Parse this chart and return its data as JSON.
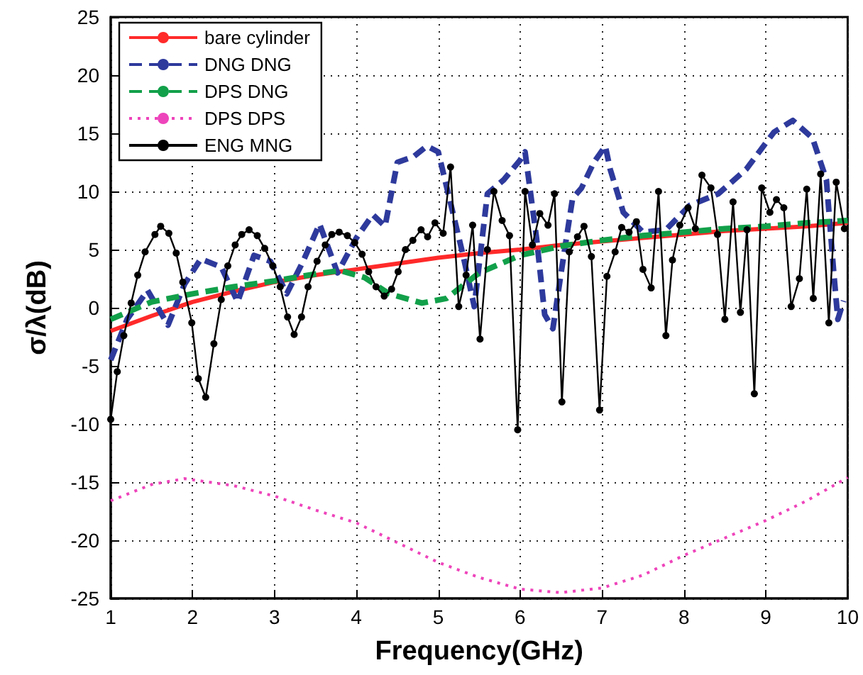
{
  "chart_data": {
    "type": "line",
    "xlabel": "Frequency(GHz)",
    "ylabel": "σ/λ(dB)",
    "xlim": [
      1,
      10
    ],
    "xticks": [
      1,
      2,
      3,
      4,
      5,
      6,
      7,
      8,
      9,
      10
    ],
    "ylim": [
      -25,
      25
    ],
    "yticks": [
      -25,
      -20,
      -15,
      -10,
      -5,
      0,
      5,
      10,
      15,
      20,
      25
    ],
    "grid": true,
    "legend": "top left",
    "series": [
      {
        "name": "bare cylinder",
        "color": "#ff2a2a",
        "line_style": "solid",
        "marker": "none",
        "x": [
          1,
          1.5,
          2,
          2.5,
          3,
          3.5,
          4,
          4.5,
          5,
          5.5,
          6,
          6.5,
          7,
          7.5,
          8,
          8.5,
          9,
          9.5,
          10
        ],
        "values": [
          -2,
          -0.7,
          0.5,
          1.4,
          2.2,
          2.8,
          3.3,
          3.8,
          4.3,
          4.7,
          5.0,
          5.4,
          5.7,
          6.0,
          6.3,
          6.6,
          6.8,
          7.0,
          7.3
        ]
      },
      {
        "name": "DNG DNG",
        "color": "#2e3a9c",
        "line_style": "dashed",
        "marker": "none",
        "x": [
          1,
          1.2,
          1.45,
          1.7,
          1.9,
          2.1,
          2.35,
          2.55,
          2.75,
          2.95,
          3.15,
          3.35,
          3.55,
          3.77,
          4.0,
          4.2,
          4.35,
          4.5,
          4.7,
          4.86,
          5.0,
          5.15,
          5.3,
          5.44,
          5.6,
          5.8,
          6.0,
          6.06,
          6.2,
          6.3,
          6.4,
          6.5,
          6.64,
          6.75,
          6.9,
          7.04,
          7.1,
          7.26,
          7.5,
          7.78,
          8.07,
          8.42,
          8.76,
          9.1,
          9.33,
          9.57,
          9.74,
          9.83,
          9.88,
          9.95
        ],
        "values": [
          -4.5,
          -1,
          1.5,
          -1.5,
          2,
          4.2,
          3.5,
          0.5,
          4.5,
          4,
          1.2,
          4,
          7.2,
          3,
          6,
          8,
          7,
          12.5,
          13,
          13.9,
          13.4,
          9,
          4.6,
          0.1,
          9.8,
          11,
          12.7,
          13.4,
          6,
          -0.6,
          -1.8,
          3,
          9.4,
          10.3,
          12.5,
          13.9,
          11.9,
          8.2,
          6.5,
          6.7,
          8.8,
          9.8,
          11.9,
          15.1,
          16.1,
          14.6,
          11,
          3,
          -1,
          0.6
        ]
      },
      {
        "name": "DPS DNG",
        "color": "#12a04a",
        "line_style": "dashed",
        "marker": "none",
        "x": [
          1,
          1.5,
          2,
          2.5,
          3,
          3.5,
          3.8,
          4.1,
          4.4,
          4.8,
          5.1,
          5.5,
          6,
          6.5,
          7,
          7.5,
          8,
          8.5,
          9,
          9.5,
          10
        ],
        "values": [
          -1,
          0.5,
          1.2,
          1.8,
          2.3,
          2.9,
          3.2,
          2.6,
          1.2,
          0.4,
          0.8,
          3,
          4.5,
          5.3,
          5.8,
          6.2,
          6.5,
          6.8,
          7,
          7.3,
          7.5
        ]
      },
      {
        "name": "DPS DPS",
        "color": "#ee44bb",
        "line_style": "dotted",
        "marker": "none",
        "x": [
          1,
          1.5,
          1.9,
          2.5,
          3,
          3.5,
          4,
          4.5,
          5,
          5.5,
          6,
          6.5,
          7,
          7.5,
          8,
          8.5,
          9,
          9.5,
          10
        ],
        "values": [
          -16.6,
          -15.2,
          -14.7,
          -15.3,
          -16.2,
          -17.4,
          -18.5,
          -20.2,
          -21.9,
          -23.2,
          -24.2,
          -24.5,
          -24.1,
          -23,
          -21.3,
          -19.8,
          -18.3,
          -16.6,
          -14.6
        ]
      },
      {
        "name": "ENG MNG",
        "color": "#000000",
        "line_style": "solid",
        "marker": "circle",
        "x": [
          1,
          1.08,
          1.16,
          1.25,
          1.33,
          1.42,
          1.54,
          1.61,
          1.71,
          1.8,
          1.88,
          1.99,
          2.07,
          2.16,
          2.26,
          2.35,
          2.43,
          2.52,
          2.6,
          2.69,
          2.79,
          2.88,
          2.98,
          3.07,
          3.16,
          3.24,
          3.33,
          3.41,
          3.52,
          3.62,
          3.7,
          3.79,
          3.89,
          3.98,
          4.07,
          4.15,
          4.24,
          4.34,
          4.43,
          4.51,
          4.6,
          4.69,
          4.79,
          4.87,
          4.96,
          5.06,
          5.15,
          5.25,
          5.34,
          5.42,
          5.51,
          5.6,
          5.68,
          5.78,
          5.87,
          5.97,
          6.06,
          6.15,
          6.24,
          6.34,
          6.42,
          6.51,
          6.6,
          6.7,
          6.78,
          6.87,
          6.97,
          7.06,
          7.16,
          7.24,
          7.33,
          7.42,
          7.5,
          7.6,
          7.69,
          7.78,
          7.86,
          7.95,
          8.05,
          8.14,
          8.22,
          8.33,
          8.41,
          8.5,
          8.6,
          8.69,
          8.77,
          8.86,
          8.95,
          9.05,
          9.13,
          9.22,
          9.31,
          9.41,
          9.5,
          9.58,
          9.67,
          9.77,
          9.86,
          9.96
        ],
        "values": [
          -9.6,
          -5.5,
          -2.4,
          0.4,
          2.8,
          4.8,
          6.3,
          7.0,
          6.4,
          4.7,
          2.2,
          -1.3,
          -6.1,
          -7.7,
          -3.1,
          0.7,
          3.6,
          5.4,
          6.3,
          6.7,
          6.2,
          5.1,
          3.6,
          1.8,
          -0.8,
          -2.3,
          -0.8,
          1.8,
          4.0,
          5.4,
          6.3,
          6.5,
          6.2,
          5.6,
          4.6,
          3.1,
          1.8,
          1.0,
          1.6,
          3.1,
          5.0,
          5.8,
          6.7,
          6.1,
          7.3,
          6.4,
          12.1,
          0.1,
          2.8,
          7.1,
          -2.7,
          5.0,
          10.0,
          7.5,
          6.2,
          -10.5,
          10.0,
          5.4,
          8.1,
          7.1,
          9.8,
          -8.1,
          4.8,
          6.1,
          7.0,
          4.4,
          -8.8,
          2.7,
          4.8,
          6.9,
          6.5,
          7.4,
          3.3,
          1.7,
          10.0,
          -2.4,
          4.1,
          7.1,
          8.6,
          6.8,
          11.4,
          10.3,
          6.3,
          -1.0,
          9.1,
          -0.4,
          6.7,
          -7.4,
          10.3,
          8.2,
          9.3,
          8.6,
          0.1,
          2.5,
          10.2,
          0.8,
          11.5,
          -1.3,
          10.8,
          6.8
        ]
      }
    ]
  }
}
